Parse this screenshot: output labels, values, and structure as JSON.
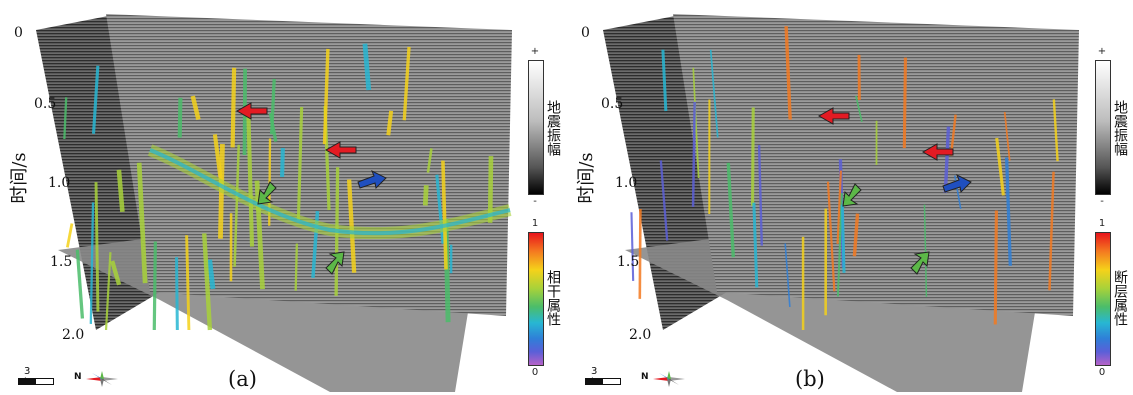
{
  "figure": {
    "panels": [
      {
        "caption": "(a)",
        "y_axis_label": "时间/s",
        "ticks": [
          "0",
          "0.5",
          "1.0",
          "1.5",
          "2.0"
        ],
        "colorbar_amp": {
          "label": "地震振幅",
          "plus": "+",
          "minus": "-"
        },
        "colorbar_attr": {
          "label": "相干属性",
          "top": "1",
          "bottom": "0"
        },
        "scale_label": "3 km",
        "compass_label": "N"
      },
      {
        "caption": "(b)",
        "y_axis_label": "时间/s",
        "ticks": [
          "0",
          "0.5",
          "1.0",
          "1.5",
          "2.0"
        ],
        "colorbar_amp": {
          "label": "地震振幅",
          "plus": "+",
          "minus": "-"
        },
        "colorbar_attr": {
          "label": "断层属性",
          "top": "1",
          "bottom": "0"
        },
        "scale_label": "3 km",
        "compass_label": "N"
      }
    ],
    "colors": {
      "arrow_red": "#e31b23",
      "arrow_blue": "#1f4fbf",
      "arrow_green": "#5cb848",
      "seismic_dark": "#3a3a3a",
      "seismic_light": "#d8d8d8"
    },
    "icons": [
      "compass-rose-icon",
      "red-arrow-icon",
      "blue-arrow-icon",
      "green-arrow-icon"
    ]
  }
}
